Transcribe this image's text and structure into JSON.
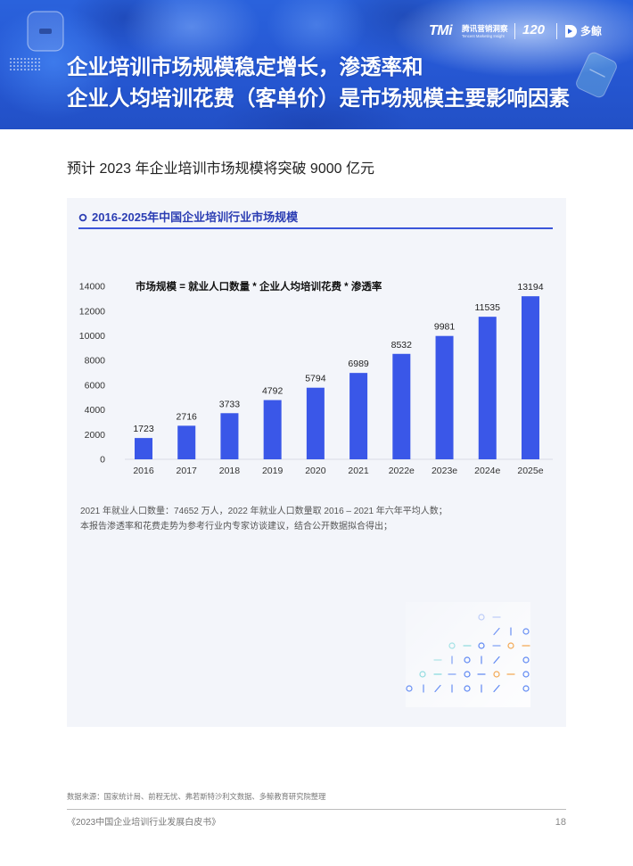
{
  "header": {
    "logos": {
      "tmi": "TMi",
      "tmi_cn": "腾讯营销洞察",
      "tmi_en": "Tencent Marketing Insight",
      "anniversary": "120",
      "duojing": "多鲸"
    },
    "icons": [
      "rounded-square-icon",
      "dot-grid-icon",
      "tilted-card-icon",
      "duojing-logo-icon"
    ],
    "title_lines": [
      "企业培训市场规模稳定增长，渗透率和",
      "企业人均培训花费（客单价）是市场规模主要影响因素"
    ]
  },
  "subtitle": "预计 2023 年企业培训市场规模将突破 9000 亿元",
  "chart_data": {
    "type": "bar",
    "title": "2016-2025年中国企业培训行业市场规模",
    "annotation": "市场规模 = 就业人口数量 * 企业人均培训花费 * 渗透率",
    "categories": [
      "2016",
      "2017",
      "2018",
      "2019",
      "2020",
      "2021",
      "2022e",
      "2023e",
      "2024e",
      "2025e"
    ],
    "values": [
      1723,
      2716,
      3733,
      4792,
      5794,
      6989,
      8532,
      9981,
      11535,
      13194
    ],
    "ylim": [
      0,
      14000
    ],
    "yticks": [
      0,
      2000,
      4000,
      6000,
      8000,
      10000,
      12000,
      14000
    ],
    "grid": false,
    "data_labels": true,
    "bar_color": "#3a57e8"
  },
  "notes": [
    "2021 年就业人口数量：74652 万人，2022 年就业人口数量取 2016 – 2021 年六年平均人数；",
    "本报告渗透率和花费走势为参考行业内专家访谈建议，结合公开数据拟合得出；"
  ],
  "source": "数据来源：国家统计局、前程无忧、弗若斯特沙利文数据、多鲸教育研究院整理",
  "footer": {
    "book_title": "《2023中国企业培训行业发展白皮书》",
    "page_number": "18"
  },
  "colors": {
    "accent": "#2b3db3",
    "accent_line": "#3b55d9",
    "panel_bg": "#f3f5fa",
    "header_blue": "#2658d4"
  }
}
